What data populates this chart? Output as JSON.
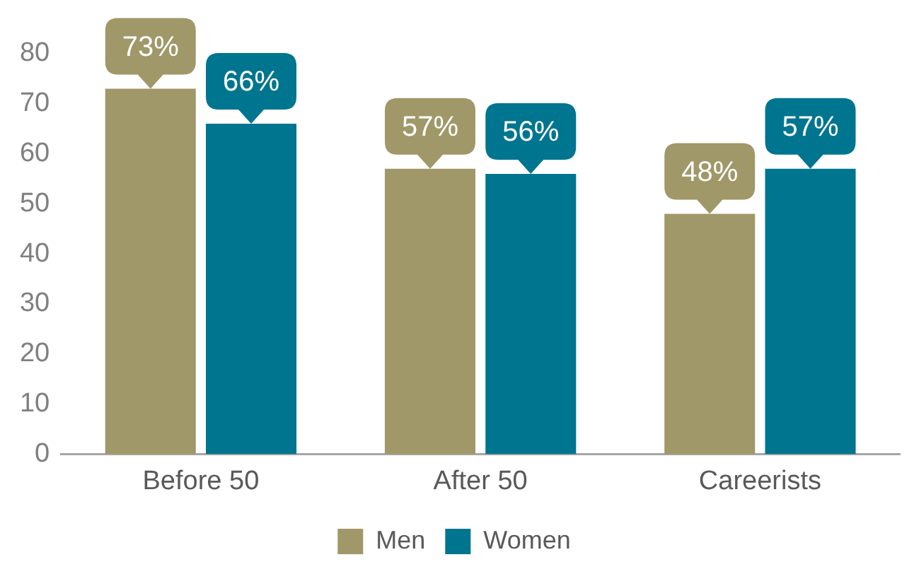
{
  "chart_data": {
    "type": "bar",
    "categories": [
      "Before 50",
      "After 50",
      "Careerists"
    ],
    "series": [
      {
        "name": "Men",
        "color": "#a09868",
        "values": [
          73,
          57,
          48
        ],
        "value_labels": [
          "73%",
          "57%",
          "48%"
        ]
      },
      {
        "name": "Women",
        "color": "#00758f",
        "values": [
          66,
          56,
          57
        ],
        "value_labels": [
          "66%",
          "56%",
          "57%"
        ]
      }
    ],
    "ylim": [
      0,
      80
    ],
    "yticks": [
      0,
      10,
      20,
      30,
      40,
      50,
      60,
      70,
      80
    ],
    "grid": false,
    "legend": "bottom"
  }
}
